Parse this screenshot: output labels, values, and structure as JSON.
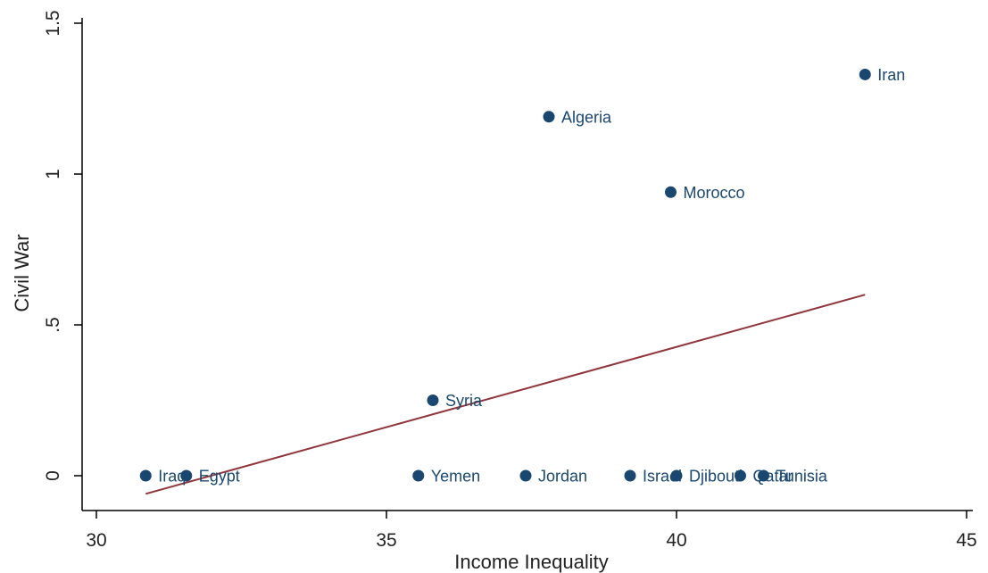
{
  "chart_data": {
    "type": "scatter",
    "title": "",
    "xlabel": "Income Inequality",
    "ylabel": "Civil War",
    "xlim": [
      30,
      45
    ],
    "ylim": [
      0,
      1.5
    ],
    "xticks": [
      {
        "value": 30,
        "label": "30"
      },
      {
        "value": 35,
        "label": "35"
      },
      {
        "value": 40,
        "label": "40"
      },
      {
        "value": 45,
        "label": "45"
      }
    ],
    "yticks": [
      {
        "value": 0,
        "label": "0"
      },
      {
        "value": 0.5,
        "label": ".5"
      },
      {
        "value": 1,
        "label": "1"
      },
      {
        "value": 1.5,
        "label": "1.5"
      }
    ],
    "grid": false,
    "legend": "none",
    "points": [
      {
        "label": "Iraq",
        "x": 30.85,
        "y": 0
      },
      {
        "label": "Egypt",
        "x": 31.55,
        "y": 0
      },
      {
        "label": "Yemen",
        "x": 35.55,
        "y": 0
      },
      {
        "label": "Syria",
        "x": 35.8,
        "y": 0.25
      },
      {
        "label": "Jordan",
        "x": 37.4,
        "y": 0
      },
      {
        "label": "Algeria",
        "x": 37.8,
        "y": 1.19
      },
      {
        "label": "Israel",
        "x": 39.2,
        "y": 0
      },
      {
        "label": "Morocco",
        "x": 39.9,
        "y": 0.94
      },
      {
        "label": "Djibouti",
        "x": 40.0,
        "y": 0
      },
      {
        "label": "Qatar",
        "x": 41.1,
        "y": 0
      },
      {
        "label": "Tunisia",
        "x": 41.5,
        "y": 0
      },
      {
        "label": "Iran",
        "x": 43.25,
        "y": 1.33
      }
    ],
    "fit_line": {
      "x": [
        30.85,
        43.25
      ],
      "y": [
        -0.06,
        0.6
      ]
    },
    "colors": {
      "marker": "#1a476f",
      "label": "#1a476f",
      "fit_line": "#90353b",
      "axis": "#000000"
    }
  }
}
